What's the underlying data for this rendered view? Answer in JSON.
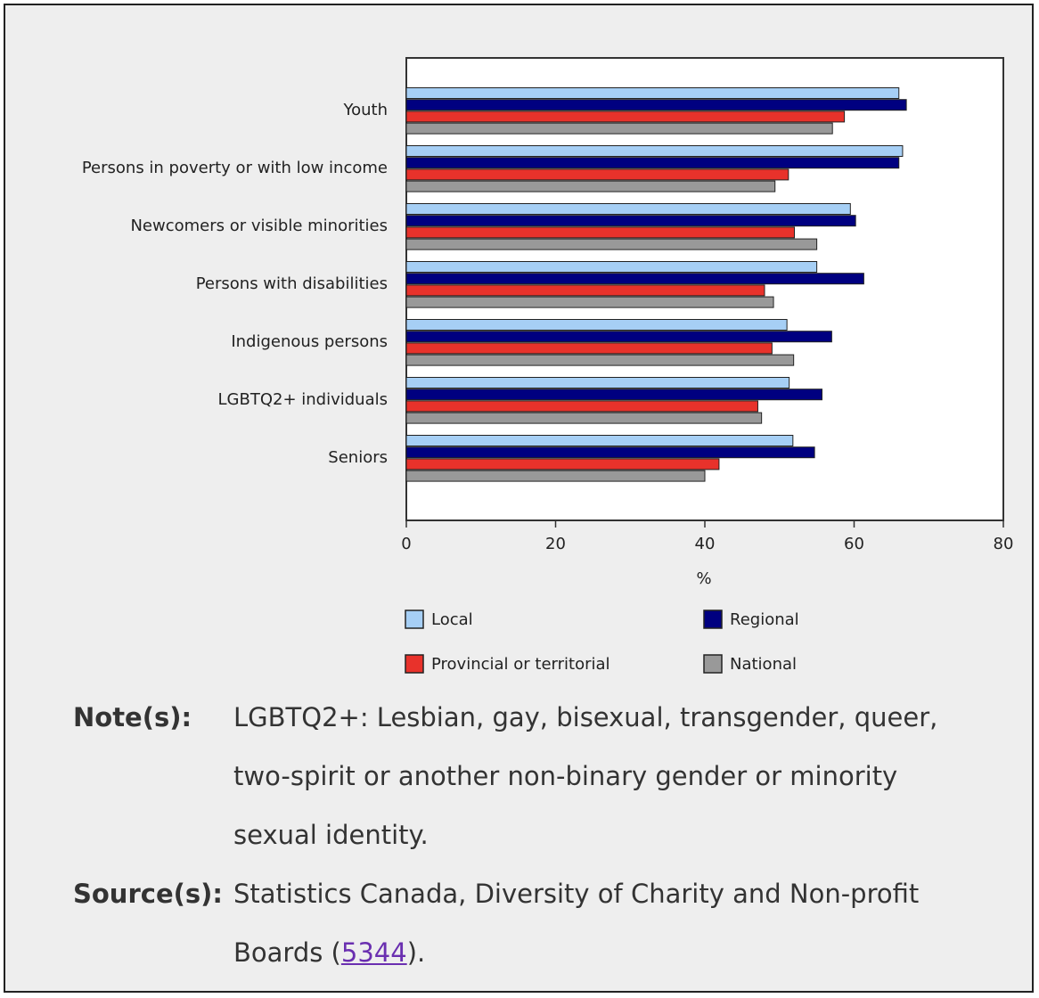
{
  "chart_data": {
    "type": "bar",
    "orientation": "horizontal",
    "categories": [
      "Youth",
      "Persons in poverty or with low income",
      "Newcomers or visible minorities",
      "Persons with disabilities",
      "Indigenous persons",
      "LGBTQ2+ individuals",
      "Seniors"
    ],
    "series": [
      {
        "name": "Local",
        "color": "#a6cff5",
        "values": [
          66,
          66.5,
          59.5,
          55,
          51,
          51.3,
          51.8
        ]
      },
      {
        "name": "Regional",
        "color": "#000080",
        "values": [
          67,
          66,
          60.2,
          61.3,
          57,
          55.7,
          54.7
        ]
      },
      {
        "name": "Provincial or territorial",
        "color": "#e8322b",
        "values": [
          58.7,
          51.2,
          52,
          48,
          49,
          47.1,
          41.9
        ]
      },
      {
        "name": "National",
        "color": "#999999",
        "values": [
          57.1,
          49.4,
          55,
          49.2,
          51.9,
          47.6,
          40
        ]
      }
    ],
    "xlabel": "%",
    "xlim": [
      0,
      80
    ],
    "xticks": [
      "0",
      "20",
      "40",
      "60",
      "80"
    ],
    "grid": false,
    "legend_position": "bottom"
  },
  "notes": {
    "note_label": "Note(s):",
    "note_text": "LGBTQ2+: Lesbian, gay, bisexual, transgender, queer, two-spirit or another non-binary gender or minority sexual identity.",
    "source_label": "Source(s):",
    "source_text_before": "Statistics Canada, Diversity of Charity and Non-profit Boards (",
    "source_link": "5344",
    "source_text_after": ")."
  }
}
